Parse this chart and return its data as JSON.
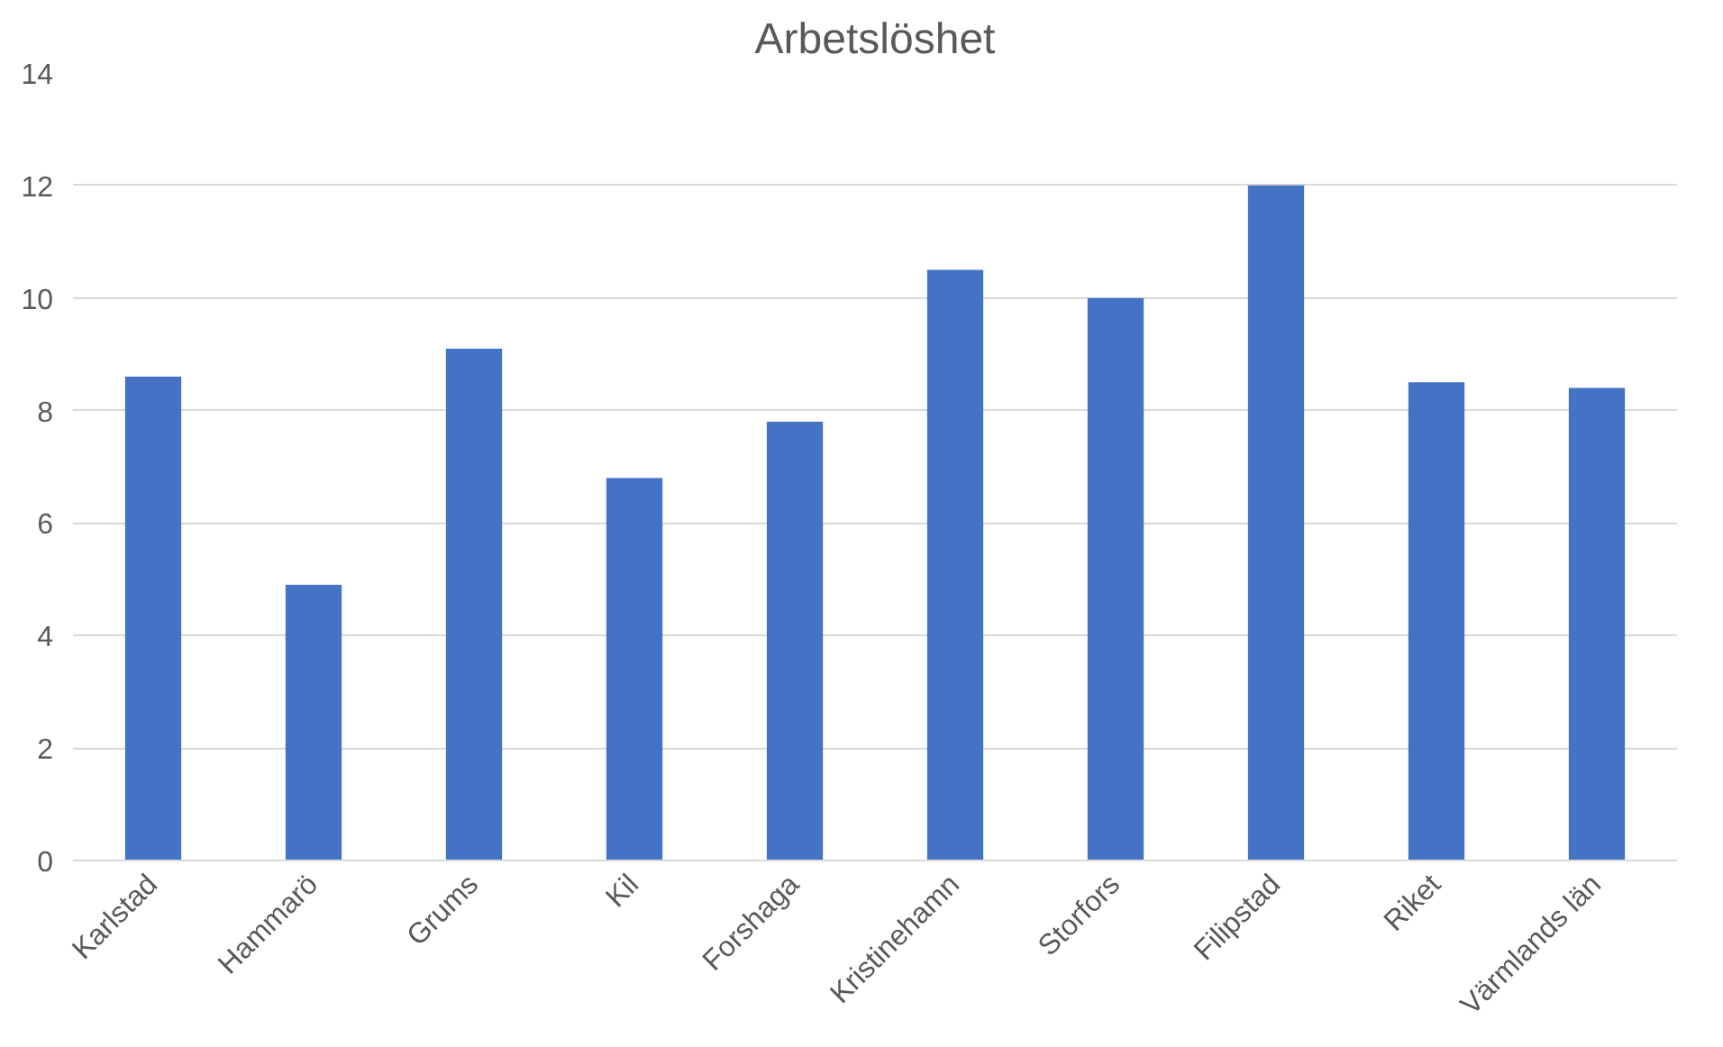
{
  "chart_data": {
    "type": "bar",
    "title": "Arbetslöshet",
    "categories": [
      "Karlstad",
      "Hammarö",
      "Grums",
      "Kil",
      "Forshaga",
      "Kristinehamn",
      "Storfors",
      "Filipstad",
      "Riket",
      "Värmlands län"
    ],
    "values": [
      8.6,
      4.9,
      9.1,
      6.8,
      7.8,
      10.5,
      10.0,
      12.0,
      8.5,
      8.4
    ],
    "color": "#4472c4",
    "ylim": [
      0,
      14
    ],
    "yticks": [
      0,
      2,
      4,
      6,
      8,
      10,
      12,
      14
    ],
    "grid": "y"
  }
}
